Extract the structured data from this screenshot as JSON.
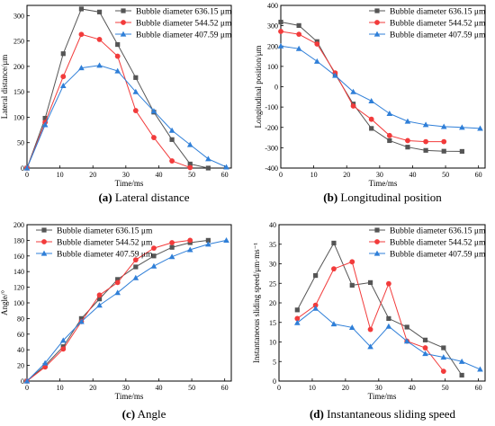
{
  "chart_data": [
    {
      "type": "line",
      "caption_letter": "(a)",
      "caption_text": "Lateral distance",
      "xlabel": "Time/ms",
      "ylabel": "Lateral distance/μm",
      "xlim": [
        0,
        62
      ],
      "ylim": [
        0,
        320
      ],
      "xticks": [
        0,
        10,
        20,
        30,
        40,
        50,
        60
      ],
      "yticks": [
        0,
        50,
        100,
        150,
        200,
        250,
        300
      ],
      "legend_position": "top-right",
      "series": [
        {
          "name": "Bubble diameter 636.15 μm",
          "color": "#555555",
          "marker": "square",
          "points": [
            [
              0,
              0
            ],
            [
              5.5,
              98
            ],
            [
              11,
              225
            ],
            [
              16.5,
              313
            ],
            [
              22,
              307
            ],
            [
              27.5,
              243
            ],
            [
              33,
              178
            ],
            [
              38.5,
              110
            ],
            [
              44,
              56
            ],
            [
              49.5,
              8
            ],
            [
              55,
              0
            ]
          ]
        },
        {
          "name": "Bubble diameter 544.52 μm",
          "color": "#f23b3b",
          "marker": "circle",
          "points": [
            [
              0,
              0
            ],
            [
              5.5,
              90
            ],
            [
              11,
              180
            ],
            [
              16.5,
              263
            ],
            [
              22,
              253
            ],
            [
              27.5,
              220
            ],
            [
              33,
              113
            ],
            [
              38.5,
              60
            ],
            [
              44,
              14
            ],
            [
              49.5,
              1
            ]
          ]
        },
        {
          "name": "Bubble diameter 407.59 μm",
          "color": "#2f7fd8",
          "marker": "triangle",
          "points": [
            [
              0,
              0
            ],
            [
              5.5,
              85
            ],
            [
              11,
              162
            ],
            [
              16.5,
              197
            ],
            [
              22,
              202
            ],
            [
              27.5,
              191
            ],
            [
              33,
              150
            ],
            [
              38.5,
              112
            ],
            [
              44,
              74
            ],
            [
              49.5,
              46
            ],
            [
              55,
              18
            ],
            [
              60.5,
              2
            ]
          ]
        }
      ]
    },
    {
      "type": "line",
      "caption_letter": "(b)",
      "caption_text": "Longitudinal position",
      "xlabel": "Time/ms",
      "ylabel": "Longitudinal position/μm",
      "xlim": [
        0,
        62
      ],
      "ylim": [
        -400,
        400
      ],
      "xticks": [
        0,
        10,
        20,
        30,
        40,
        50,
        60
      ],
      "yticks": [
        -400,
        -300,
        -200,
        -100,
        0,
        100,
        200,
        300,
        400
      ],
      "legend_position": "top-right",
      "series": [
        {
          "name": "Bubble diameter 636.15 μm",
          "color": "#555555",
          "marker": "square",
          "points": [
            [
              0,
              318
            ],
            [
              5.5,
              301
            ],
            [
              11,
              222
            ],
            [
              16.5,
              62
            ],
            [
              22,
              -85
            ],
            [
              27.5,
              -205
            ],
            [
              33,
              -265
            ],
            [
              38.5,
              -297
            ],
            [
              44,
              -313
            ],
            [
              49.5,
              -317
            ],
            [
              55,
              -318
            ]
          ]
        },
        {
          "name": "Bubble diameter 544.52 μm",
          "color": "#f23b3b",
          "marker": "circle",
          "points": [
            [
              0,
              272
            ],
            [
              5.5,
              258
            ],
            [
              11,
              210
            ],
            [
              16.5,
              68
            ],
            [
              22,
              -95
            ],
            [
              27.5,
              -160
            ],
            [
              33,
              -240
            ],
            [
              38.5,
              -265
            ],
            [
              44,
              -270
            ],
            [
              49.5,
              -270
            ]
          ]
        },
        {
          "name": "Bubble diameter 407.59 μm",
          "color": "#2f7fd8",
          "marker": "triangle",
          "points": [
            [
              0,
              200
            ],
            [
              5.5,
              187
            ],
            [
              11,
              125
            ],
            [
              16.5,
              55
            ],
            [
              22,
              -25
            ],
            [
              27.5,
              -70
            ],
            [
              33,
              -132
            ],
            [
              38.5,
              -170
            ],
            [
              44,
              -187
            ],
            [
              49.5,
              -196
            ],
            [
              55,
              -200
            ],
            [
              60.5,
              -205
            ]
          ]
        }
      ]
    },
    {
      "type": "line",
      "caption_letter": "(c)",
      "caption_text": "Angle",
      "xlabel": "Time/ms",
      "ylabel": "Angle/°",
      "xlim": [
        0,
        62
      ],
      "ylim": [
        0,
        200
      ],
      "xticks": [
        0,
        10,
        20,
        30,
        40,
        50,
        60
      ],
      "yticks": [
        0,
        20,
        40,
        60,
        80,
        100,
        120,
        140,
        160,
        180,
        200
      ],
      "legend_position": "top-left",
      "series": [
        {
          "name": "Bubble diameter 636.15 μm",
          "color": "#555555",
          "marker": "square",
          "points": [
            [
              0,
              0
            ],
            [
              5.5,
              20
            ],
            [
              11,
              44
            ],
            [
              16.5,
              80
            ],
            [
              22,
              105
            ],
            [
              27.5,
              130
            ],
            [
              33,
              146
            ],
            [
              38.5,
              160
            ],
            [
              44,
              171
            ],
            [
              49.5,
              177
            ],
            [
              55,
              180
            ]
          ]
        },
        {
          "name": "Bubble diameter 544.52 μm",
          "color": "#f23b3b",
          "marker": "circle",
          "points": [
            [
              0,
              0
            ],
            [
              5.5,
              18
            ],
            [
              11,
              41
            ],
            [
              16.5,
              76
            ],
            [
              22,
              110
            ],
            [
              27.5,
              126
            ],
            [
              33,
              155
            ],
            [
              38.5,
              170
            ],
            [
              44,
              177
            ],
            [
              49.5,
              180
            ]
          ]
        },
        {
          "name": "Bubble diameter 407.59 μm",
          "color": "#2f7fd8",
          "marker": "triangle",
          "points": [
            [
              0,
              0
            ],
            [
              5.5,
              23
            ],
            [
              11,
              52
            ],
            [
              16.5,
              76
            ],
            [
              22,
              97
            ],
            [
              27.5,
              113
            ],
            [
              33,
              132
            ],
            [
              38.5,
              147
            ],
            [
              44,
              159
            ],
            [
              49.5,
              168
            ],
            [
              55,
              175
            ],
            [
              60.5,
              180
            ]
          ]
        }
      ]
    },
    {
      "type": "line",
      "caption_letter": "(d)",
      "caption_text": "Instantaneous sliding speed",
      "xlabel": "Time/ms",
      "ylabel": "Instantaneous sliding speed/μm·ms⁻¹",
      "xlim": [
        0,
        62
      ],
      "ylim": [
        0,
        40
      ],
      "xticks": [
        0,
        10,
        20,
        30,
        40,
        50,
        60
      ],
      "yticks": [
        0,
        5,
        10,
        15,
        20,
        25,
        30,
        35,
        40
      ],
      "legend_position": "top-right",
      "series": [
        {
          "name": "Bubble diameter 636.15 μm",
          "color": "#555555",
          "marker": "square",
          "points": [
            [
              5.5,
              18.2
            ],
            [
              11,
              27
            ],
            [
              16.5,
              35.3
            ],
            [
              22,
              24.5
            ],
            [
              27.5,
              25.2
            ],
            [
              33,
              16
            ],
            [
              38.5,
              13.8
            ],
            [
              44,
              10.5
            ],
            [
              49.5,
              8.5
            ],
            [
              55,
              1.5
            ]
          ]
        },
        {
          "name": "Bubble diameter 544.52 μm",
          "color": "#f23b3b",
          "marker": "circle",
          "points": [
            [
              5.5,
              16
            ],
            [
              11,
              19.4
            ],
            [
              16.5,
              28.7
            ],
            [
              22,
              30.5
            ],
            [
              27.5,
              13.2
            ],
            [
              33,
              24.9
            ],
            [
              38.5,
              10.2
            ],
            [
              44,
              8.5
            ],
            [
              49.5,
              2.5
            ]
          ]
        },
        {
          "name": "Bubble diameter 407.59 μm",
          "color": "#2f7fd8",
          "marker": "triangle",
          "points": [
            [
              5.5,
              14.9
            ],
            [
              11,
              18.6
            ],
            [
              16.5,
              14.6
            ],
            [
              22,
              13.7
            ],
            [
              27.5,
              8.8
            ],
            [
              33,
              14
            ],
            [
              38.5,
              10.2
            ],
            [
              44,
              7
            ],
            [
              49.5,
              6.1
            ],
            [
              55,
              5
            ],
            [
              60.5,
              3
            ]
          ]
        }
      ]
    }
  ]
}
